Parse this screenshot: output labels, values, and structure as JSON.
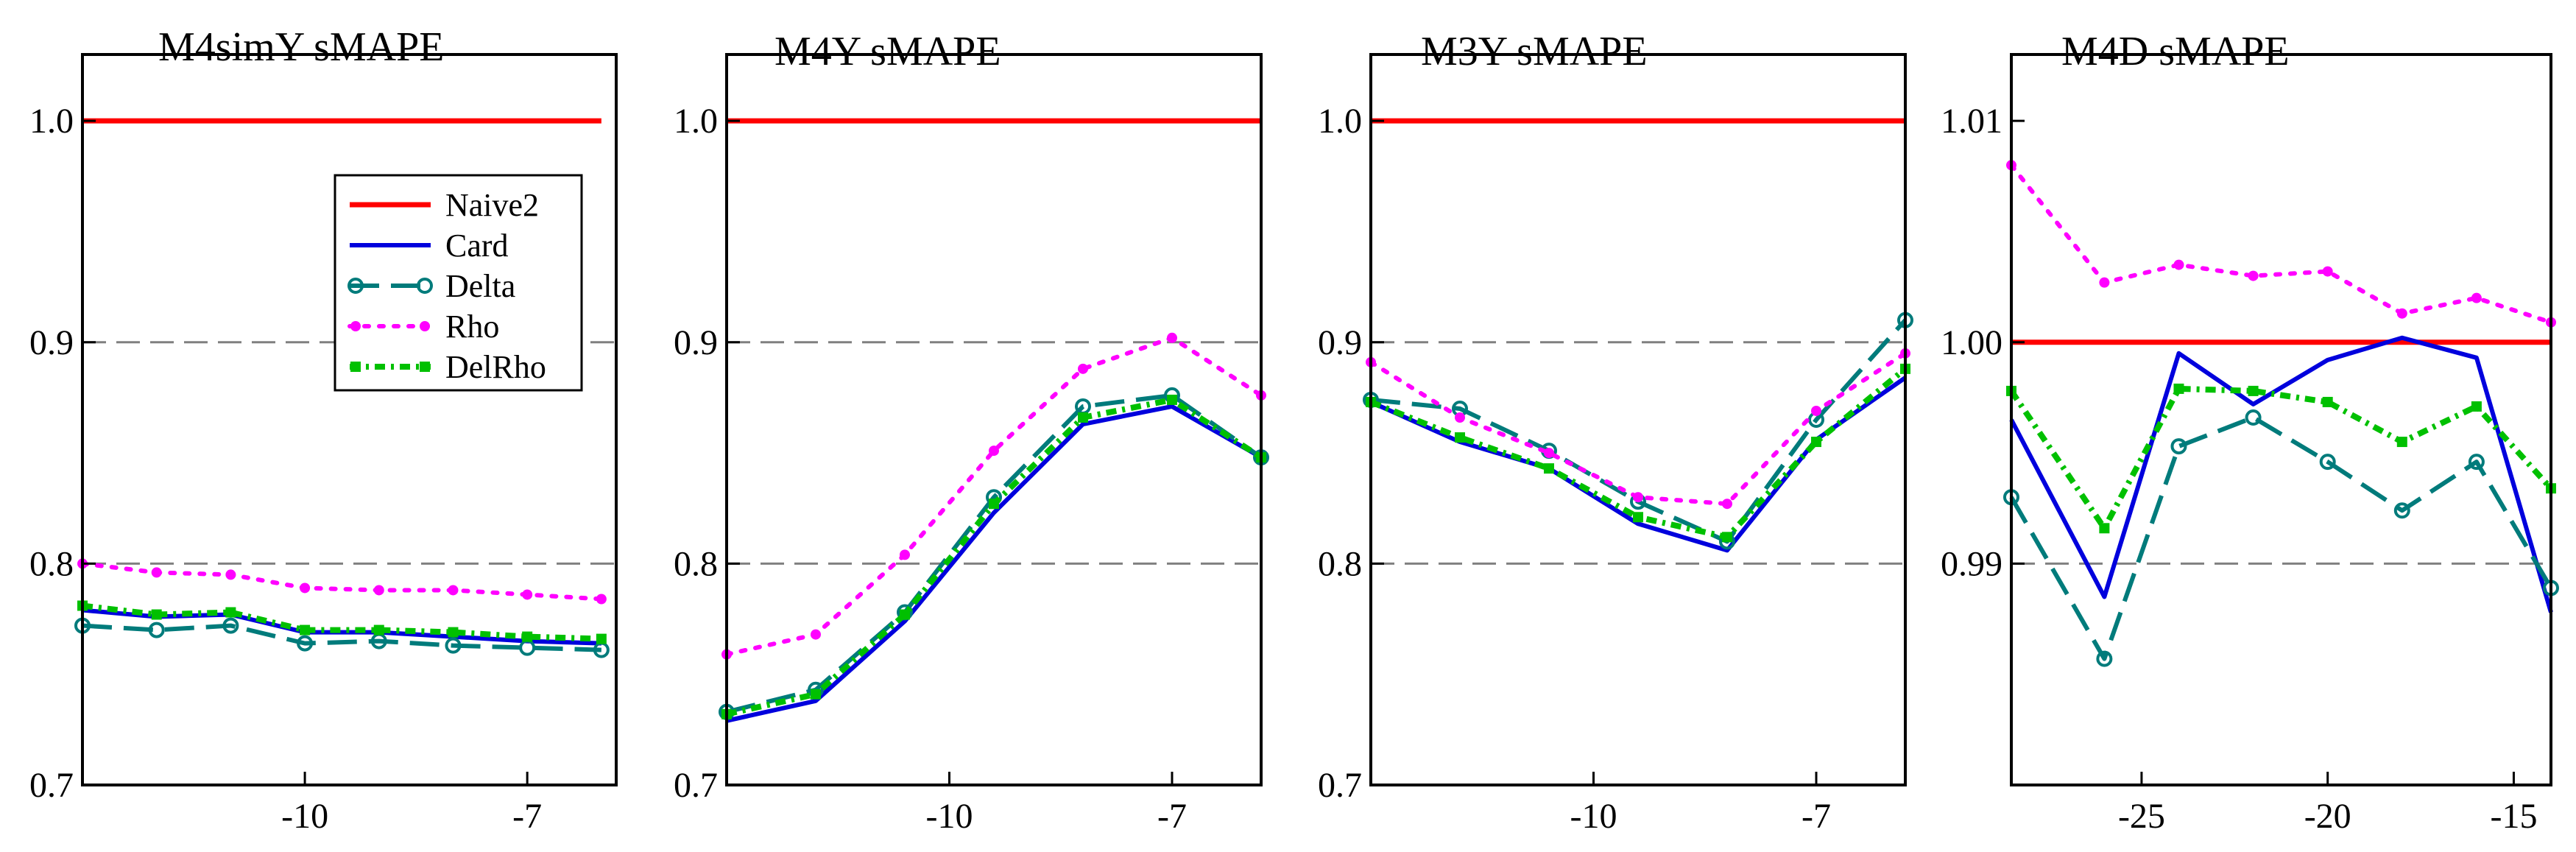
{
  "colors": {
    "Naive2": "#ff0000",
    "Card": "#0000dd",
    "Delta": "#007b7b",
    "Rho": "#ff00ff",
    "DelRho": "#00c000",
    "grid": "#808080"
  },
  "legend": [
    "Naive2",
    "Card",
    "Delta",
    "Rho",
    "DelRho"
  ],
  "chart_data": [
    {
      "type": "line",
      "title": "M4simY sMAPE",
      "xlim": [
        -13,
        -5.8
      ],
      "ylim": [
        0.7,
        1.03
      ],
      "xticks": [
        -10,
        -7
      ],
      "xtick_labels": [
        "-10",
        "-7"
      ],
      "yticks": [
        0.7,
        0.8,
        0.9,
        1.0
      ],
      "ytick_labels": [
        "0.7",
        "0.8",
        "0.9",
        "1.0"
      ],
      "gridlines": [
        0.8,
        0.9
      ],
      "legend_position": "upper-right",
      "x": [
        -13,
        -12,
        -11,
        -10,
        -9,
        -8,
        -7,
        -6
      ],
      "series": [
        {
          "name": "Naive2",
          "values": [
            1.0,
            1.0,
            1.0,
            1.0,
            1.0,
            1.0,
            1.0,
            1.0
          ]
        },
        {
          "name": "Card",
          "values": [
            0.779,
            0.776,
            0.777,
            0.769,
            0.769,
            0.767,
            0.765,
            0.764
          ]
        },
        {
          "name": "Delta",
          "values": [
            0.772,
            0.77,
            0.772,
            0.764,
            0.765,
            0.763,
            0.762,
            0.761
          ]
        },
        {
          "name": "Rho",
          "values": [
            0.8,
            0.796,
            0.795,
            0.789,
            0.788,
            0.788,
            0.786,
            0.784
          ]
        },
        {
          "name": "DelRho",
          "values": [
            0.781,
            0.777,
            0.778,
            0.77,
            0.77,
            0.769,
            0.767,
            0.766
          ]
        }
      ]
    },
    {
      "type": "line",
      "title": "M4Y sMAPE",
      "xlim": [
        -13,
        -5.8
      ],
      "ylim": [
        0.7,
        1.03
      ],
      "xticks": [
        -10,
        -7
      ],
      "xtick_labels": [
        "-10",
        "-7"
      ],
      "yticks": [
        0.7,
        0.8,
        0.9,
        1.0
      ],
      "ytick_labels": [
        "0.7",
        "0.8",
        "0.9",
        "1.0"
      ],
      "gridlines": [
        0.8,
        0.9
      ],
      "x": [
        -13,
        -11.8,
        -10.6,
        -9.4,
        -8.2,
        -7,
        -5.8
      ],
      "series": [
        {
          "name": "Naive2",
          "values": [
            1.0,
            1.0,
            1.0,
            1.0,
            1.0,
            1.0,
            1.0
          ]
        },
        {
          "name": "Card",
          "values": [
            0.729,
            0.738,
            0.774,
            0.823,
            0.863,
            0.871,
            0.848
          ]
        },
        {
          "name": "Delta",
          "values": [
            0.733,
            0.743,
            0.778,
            0.83,
            0.871,
            0.876,
            0.848
          ]
        },
        {
          "name": "Rho",
          "values": [
            0.759,
            0.768,
            0.804,
            0.851,
            0.888,
            0.902,
            0.876
          ]
        },
        {
          "name": "DelRho",
          "values": [
            0.732,
            0.741,
            0.777,
            0.827,
            0.866,
            0.874,
            0.848
          ]
        }
      ]
    },
    {
      "type": "line",
      "title": "M3Y sMAPE",
      "xlim": [
        -13,
        -5.8
      ],
      "ylim": [
        0.7,
        1.03
      ],
      "xticks": [
        -10,
        -7
      ],
      "xtick_labels": [
        "-10",
        "-7"
      ],
      "yticks": [
        0.7,
        0.8,
        0.9,
        1.0
      ],
      "ytick_labels": [
        "0.7",
        "0.8",
        "0.9",
        "1.0"
      ],
      "gridlines": [
        0.8,
        0.9
      ],
      "x": [
        -13,
        -11.8,
        -10.6,
        -9.4,
        -8.2,
        -7,
        -5.8
      ],
      "series": [
        {
          "name": "Naive2",
          "values": [
            1.0,
            1.0,
            1.0,
            1.0,
            1.0,
            1.0,
            1.0
          ]
        },
        {
          "name": "Card",
          "values": [
            0.873,
            0.855,
            0.843,
            0.818,
            0.806,
            0.856,
            0.884
          ]
        },
        {
          "name": "Delta",
          "values": [
            0.874,
            0.87,
            0.851,
            0.828,
            0.81,
            0.865,
            0.91
          ]
        },
        {
          "name": "Rho",
          "values": [
            0.891,
            0.866,
            0.85,
            0.83,
            0.827,
            0.869,
            0.895
          ]
        },
        {
          "name": "DelRho",
          "values": [
            0.873,
            0.857,
            0.843,
            0.821,
            0.812,
            0.855,
            0.888
          ]
        }
      ]
    },
    {
      "type": "line",
      "title": "M4D sMAPE",
      "xlim": [
        -28.5,
        -14
      ],
      "ylim": [
        0.98,
        1.013
      ],
      "xticks": [
        -25,
        -20,
        -15
      ],
      "xtick_labels": [
        "-25",
        "-20",
        "-15"
      ],
      "yticks": [
        0.99,
        1.0,
        1.01
      ],
      "ytick_labels": [
        "0.99",
        "1.00",
        "1.01"
      ],
      "gridlines": [
        0.99
      ],
      "x": [
        -28.5,
        -26,
        -24,
        -22,
        -20,
        -18,
        -16,
        -14
      ],
      "series": [
        {
          "name": "Naive2",
          "values": [
            1.0,
            1.0,
            1.0,
            1.0,
            1.0,
            1.0,
            1.0,
            1.0
          ]
        },
        {
          "name": "Card",
          "values": [
            0.9965,
            0.9885,
            0.9995,
            0.9972,
            0.9992,
            1.0002,
            0.9993,
            0.9878
          ]
        },
        {
          "name": "Delta",
          "values": [
            0.993,
            0.9857,
            0.9953,
            0.9966,
            0.9946,
            0.9924,
            0.9946,
            0.9889
          ]
        },
        {
          "name": "Rho",
          "values": [
            1.008,
            1.0027,
            1.0035,
            1.003,
            1.0032,
            1.0013,
            1.002,
            1.0009
          ]
        },
        {
          "name": "DelRho",
          "values": [
            0.9978,
            0.9916,
            0.9979,
            0.9978,
            0.9973,
            0.9955,
            0.9971,
            0.9934
          ]
        }
      ]
    }
  ]
}
